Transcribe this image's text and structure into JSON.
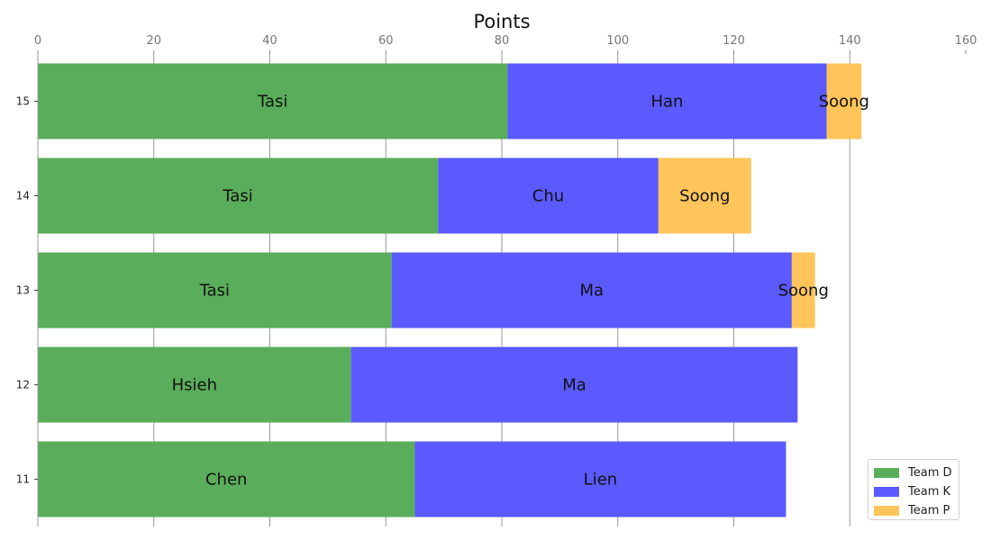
{
  "chart_data": {
    "type": "bar",
    "orientation": "horizontal",
    "stacked": true,
    "title": "Points",
    "xlabel": "",
    "ylabel": "",
    "xlim": [
      0,
      160
    ],
    "x_ticks": [
      0,
      20,
      40,
      60,
      80,
      100,
      120,
      140,
      160
    ],
    "x_axis_position": "top",
    "grid": "vertical",
    "legend_position": "bottom-right",
    "categories": [
      "11",
      "12",
      "13",
      "14",
      "15"
    ],
    "series": [
      {
        "name": "Team D",
        "color": "#5aad5a",
        "values": [
          65,
          54,
          61,
          69,
          81
        ],
        "labels": [
          "Chen",
          "Hsieh",
          "Tasi",
          "Tasi",
          "Tasi"
        ]
      },
      {
        "name": "Team K",
        "color": "#5a5aff",
        "values": [
          64,
          77,
          69,
          38,
          55
        ],
        "labels": [
          "Lien",
          "Ma",
          "Ma",
          "Chu",
          "Han"
        ]
      },
      {
        "name": "Team P",
        "color": "#ffc55a",
        "values": [
          0,
          0,
          4,
          16,
          6
        ],
        "labels": [
          "",
          "",
          "Soong",
          "Soong",
          "Soong"
        ]
      }
    ]
  }
}
